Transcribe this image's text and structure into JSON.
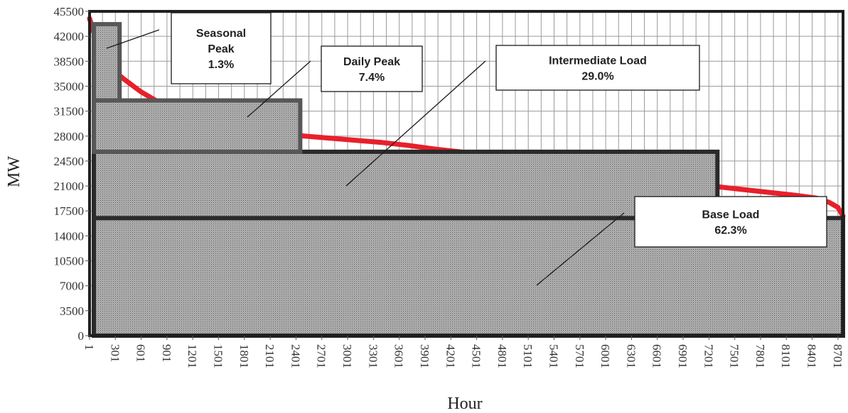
{
  "chart_data": {
    "type": "area",
    "title": "",
    "xlabel": "Hour",
    "ylabel": "MW",
    "xlim": [
      1,
      8760
    ],
    "ylim": [
      0,
      45500
    ],
    "x_ticks": [
      1,
      301,
      601,
      901,
      1201,
      1501,
      1801,
      2101,
      2401,
      2701,
      3001,
      3301,
      3601,
      3901,
      4201,
      4501,
      4801,
      5101,
      5401,
      5701,
      6001,
      6301,
      6601,
      6901,
      7201,
      7501,
      7801,
      8101,
      8401,
      8701
    ],
    "y_ticks": [
      0,
      3500,
      7000,
      10500,
      14000,
      17500,
      21000,
      24500,
      28000,
      31500,
      35000,
      38500,
      42000,
      45500
    ],
    "grid": true,
    "series": [
      {
        "name": "",
        "color": "#e8202a",
        "x": [
          1,
          100,
          200,
          300,
          400,
          600,
          800,
          1000,
          1300,
          1600,
          1900,
          2200,
          2500,
          2800,
          3100,
          3400,
          3700,
          4000,
          4300,
          4600,
          4900,
          5200,
          5500,
          5800,
          6100,
          6400,
          6700,
          7000,
          7300,
          7600,
          7900,
          8200,
          8450,
          8600,
          8700,
          8760
        ],
        "y": [
          44500,
          40500,
          38200,
          37000,
          36000,
          34200,
          32800,
          31600,
          30300,
          29300,
          28700,
          28300,
          28000,
          27700,
          27400,
          27100,
          26700,
          26200,
          25800,
          25300,
          24900,
          24400,
          23900,
          23400,
          22900,
          22400,
          21900,
          21400,
          20900,
          20500,
          20100,
          19700,
          19300,
          18700,
          18000,
          16800
        ]
      }
    ],
    "load_blocks": [
      {
        "name": "Base Load",
        "share": "62.3%",
        "x_start": 1,
        "x_end": 8760,
        "y_bottom": 0,
        "y_top": 16500
      },
      {
        "name": "Intermediate Load",
        "share": "29.0%",
        "x_start": 1,
        "x_end": 7300,
        "y_bottom": 16500,
        "y_top": 25800
      },
      {
        "name": "Daily Peak",
        "share": "7.4%",
        "x_start": 1,
        "x_end": 2450,
        "y_bottom": 25800,
        "y_top": 33000
      },
      {
        "name": "Seasonal Peak",
        "share": "1.3%",
        "x_start": 1,
        "x_end": 350,
        "y_bottom": 33000,
        "y_top": 43700
      }
    ],
    "annotations": [
      {
        "lines": [
          "Seasonal",
          "Peak",
          "1.3%"
        ],
        "target": "Seasonal Peak"
      },
      {
        "lines": [
          "Daily Peak",
          "7.4%"
        ],
        "target": "Daily Peak"
      },
      {
        "lines": [
          "Intermediate Load",
          "29.0%"
        ],
        "target": "Intermediate Load"
      },
      {
        "lines": [
          "Base Load",
          "62.3%"
        ],
        "target": "Base Load"
      }
    ]
  }
}
